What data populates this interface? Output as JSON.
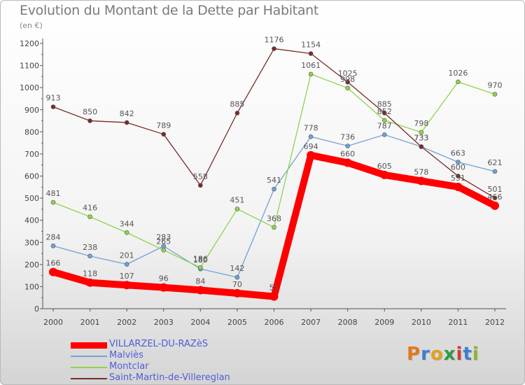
{
  "header": {
    "title": "Evolution du Montant de la Dette par Habitant",
    "subtitle": "(en €)"
  },
  "logo": {
    "text": "Proxiti",
    "letter_colors": [
      "#e07a1f",
      "#3a7fd0",
      "#e0a020",
      "#2e9a3e",
      "#d23a3a",
      "#3a7fd0",
      "#8ab52d"
    ]
  },
  "chart_data": {
    "type": "line",
    "x": [
      "2000",
      "2001",
      "2002",
      "2003",
      "2004",
      "2005",
      "2006",
      "2007",
      "2008",
      "2009",
      "2010",
      "2011",
      "2012"
    ],
    "ylim": [
      0,
      1200
    ],
    "yticks": [
      0,
      100,
      200,
      300,
      400,
      500,
      600,
      700,
      800,
      900,
      1000,
      1100,
      1200
    ],
    "grid": false,
    "legend_position": "bottom-left",
    "series": [
      {
        "name": "VILLARZEL-DU-RAZèS",
        "color": "#ff0000",
        "width": 10,
        "values": [
          166,
          118,
          107,
          96,
          84,
          70,
          55,
          694,
          660,
          605,
          578,
          551,
          466
        ],
        "labels": [
          "166",
          "118",
          "107",
          "96",
          "84",
          "70",
          "55",
          "694",
          "660",
          "605",
          "578",
          "551",
          "466"
        ]
      },
      {
        "name": "Malviès",
        "color": "#6fa3d6",
        "width": 1.3,
        "values": [
          284,
          238,
          201,
          283,
          180,
          142,
          541,
          778,
          736,
          787,
          733,
          663,
          621
        ],
        "labels": [
          "284",
          "238",
          "201",
          "283",
          "180",
          "142",
          "541",
          "778",
          "736",
          "787",
          "733",
          "663",
          "621"
        ]
      },
      {
        "name": "Montclar",
        "color": "#8fd44a",
        "width": 1.3,
        "values": [
          481,
          416,
          344,
          265,
          186,
          451,
          368,
          1061,
          998,
          852,
          798,
          1026,
          970
        ],
        "labels": [
          "481",
          "416",
          "344",
          "265",
          "186",
          "451",
          "368",
          "1061",
          "998",
          "852",
          "798",
          "1026",
          "970"
        ]
      },
      {
        "name": "Saint-Martin-de-Villereglan",
        "color": "#7a2a2a",
        "width": 1.3,
        "values": [
          913,
          850,
          842,
          789,
          558,
          885,
          1176,
          1154,
          1025,
          885,
          733,
          600,
          501
        ],
        "labels": [
          "913",
          "850",
          "842",
          "789",
          "558",
          "885",
          "1176",
          "1154",
          "1025",
          "885",
          "733",
          "600",
          "501"
        ]
      }
    ]
  }
}
